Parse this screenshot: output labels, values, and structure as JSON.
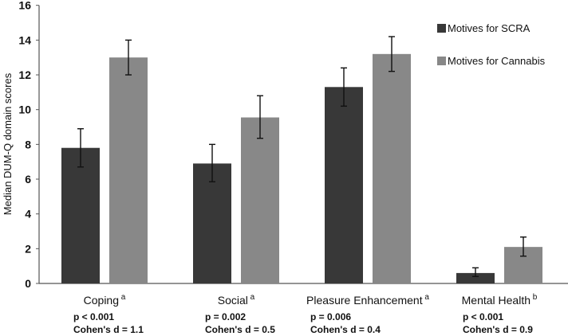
{
  "chart_data": {
    "type": "bar",
    "title": "",
    "xlabel": "",
    "ylabel": "Median DUM-Q domain scores",
    "ylim": [
      0,
      16
    ],
    "yticks": [
      "0",
      "2",
      "4",
      "6",
      "8",
      "10",
      "12",
      "14",
      "16"
    ],
    "grid": false,
    "legend_position": "top-right",
    "categories": [
      {
        "label": "Coping",
        "sup": "a",
        "p": "p < 0.001",
        "d": "Cohen's d = 1.1"
      },
      {
        "label": "Social",
        "sup": "a",
        "p": "p = 0.002",
        "d": "Cohen's d = 0.5"
      },
      {
        "label": "Pleasure Enhancement",
        "sup": "a",
        "p": "p = 0.006",
        "d": "Cohen's d = 0.4"
      },
      {
        "label": "Mental Health",
        "sup": "b",
        "p": "p < 0.001",
        "d": "Cohen's d = 0.9"
      }
    ],
    "series": [
      {
        "name": "Motives for SCRA",
        "color": "#383838",
        "values": [
          7.8,
          6.9,
          11.3,
          0.6
        ],
        "err_low": [
          6.7,
          5.85,
          10.2,
          0.4
        ],
        "err_high": [
          8.9,
          8.0,
          12.4,
          0.9
        ]
      },
      {
        "name": "Motives for Cannabis",
        "color": "#888888",
        "values": [
          13.0,
          9.55,
          13.2,
          2.1
        ],
        "err_low": [
          12.0,
          8.35,
          12.2,
          1.57
        ],
        "err_high": [
          14.0,
          10.8,
          14.2,
          2.67
        ]
      }
    ]
  }
}
